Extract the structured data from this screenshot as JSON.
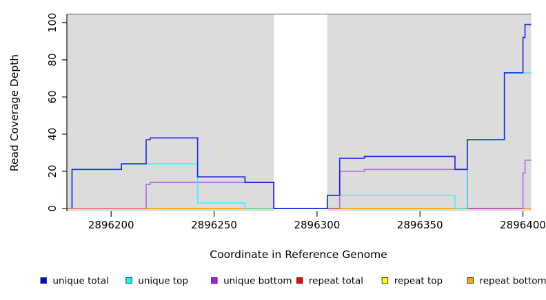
{
  "chart_data": {
    "type": "line",
    "style": "step",
    "title": "",
    "xlabel": "Coordinate in Reference Genome",
    "ylabel": "Read Coverage Depth",
    "xlim": [
      2896178.5,
      2896404
    ],
    "ylim": [
      -1.5,
      104.6
    ],
    "xticks": [
      2896200,
      2896250,
      2896300,
      2896350,
      2896400
    ],
    "xtick_labels": [
      "2896200",
      "2896250",
      "2896300",
      "2896350",
      "2896400"
    ],
    "yticks": [
      0,
      20,
      40,
      60,
      80,
      100
    ],
    "ytick_labels": [
      "0",
      "20",
      "40",
      "60",
      "80",
      "100"
    ],
    "grid": "off",
    "plot_background": "#dcdcdc",
    "gap_region": {
      "from": 2896279,
      "to": 2896305,
      "color": "#ffffff"
    },
    "series": [
      {
        "name": "repeat total",
        "color": "#ff0000",
        "opacity": 0.5,
        "segments": [
          [
            [
              2896178.5,
              0
            ],
            [
              2896404,
              0
            ]
          ]
        ]
      },
      {
        "name": "repeat top",
        "color": "#ffff00",
        "opacity": 0.6,
        "segments": [
          [
            [
              2896217,
              0
            ],
            [
              2896373,
              0
            ]
          ],
          [
            [
              2896400,
              0
            ],
            [
              2896404,
              0
            ]
          ]
        ]
      },
      {
        "name": "repeat bottom",
        "color": "#ffa500",
        "opacity": 0.95,
        "segments": [
          [
            [
              2896217,
              0
            ],
            [
              2896373,
              0
            ]
          ],
          [
            [
              2896400,
              0
            ],
            [
              2896404,
              0
            ]
          ]
        ]
      },
      {
        "name": "unique bottom",
        "color": "#a020f0",
        "opacity": 0.6,
        "segments": [
          [
            [
              2896217,
              0
            ],
            [
              2896217,
              13
            ],
            [
              2896219,
              14
            ],
            [
              2896279,
              0
            ],
            [
              2896311,
              20
            ],
            [
              2896323,
              21
            ],
            [
              2896373,
              0
            ],
            [
              2896400,
              19
            ],
            [
              2896401,
              26
            ],
            [
              2896404,
              26
            ]
          ]
        ]
      },
      {
        "name": "unique top",
        "color": "#00ffff",
        "opacity": 0.7,
        "segments": [
          [
            [
              2896181,
              0
            ],
            [
              2896181,
              21
            ],
            [
              2896205,
              24
            ],
            [
              2896242,
              3
            ],
            [
              2896265,
              0
            ],
            [
              2896305,
              7
            ],
            [
              2896367,
              0
            ],
            [
              2896373,
              37
            ],
            [
              2896391,
              73
            ],
            [
              2896404,
              73
            ]
          ]
        ]
      },
      {
        "name": "unique total",
        "color": "#0000ee",
        "opacity": 0.8,
        "segments": [
          [
            [
              2896181,
              0
            ],
            [
              2896181,
              21
            ],
            [
              2896205,
              24
            ],
            [
              2896217,
              37
            ],
            [
              2896219,
              38
            ],
            [
              2896242,
              17
            ],
            [
              2896265,
              14
            ],
            [
              2896279,
              0
            ],
            [
              2896305,
              7
            ],
            [
              2896311,
              27
            ],
            [
              2896323,
              28
            ],
            [
              2896367,
              21
            ],
            [
              2896373,
              37
            ],
            [
              2896391,
              73
            ],
            [
              2896400,
              92
            ],
            [
              2896401,
              99
            ],
            [
              2896404,
              99
            ]
          ]
        ]
      }
    ],
    "legend": {
      "position": "bottom",
      "items": [
        {
          "label": "unique total",
          "color": "#0000ee"
        },
        {
          "label": "unique top",
          "color": "#00ffff"
        },
        {
          "label": "unique bottom",
          "color": "#a020f0"
        },
        {
          "label": "repeat total",
          "color": "#ff0000"
        },
        {
          "label": "repeat top",
          "color": "#ffff00"
        },
        {
          "label": "repeat bottom",
          "color": "#ffa500"
        }
      ]
    }
  }
}
